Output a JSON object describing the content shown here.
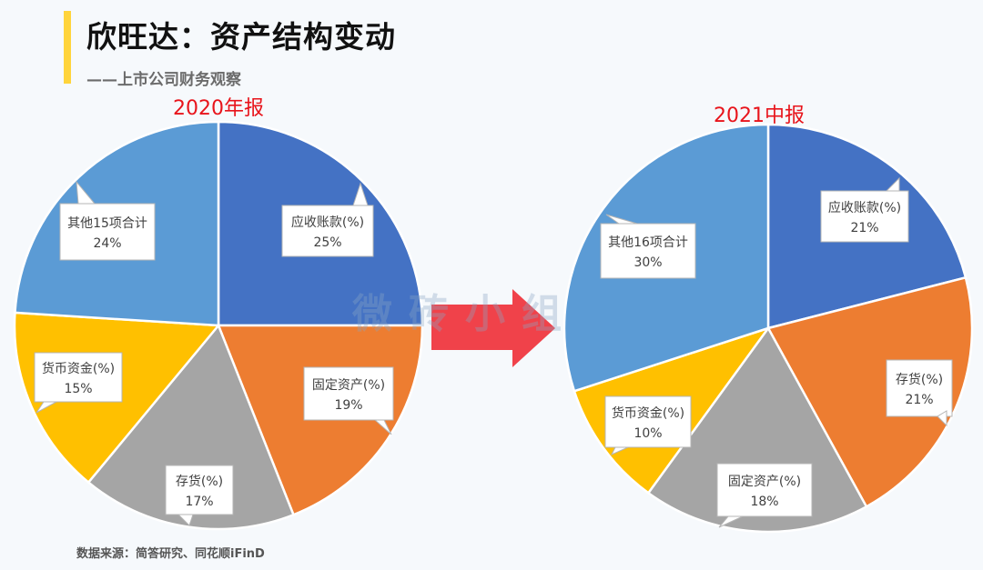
{
  "header": {
    "title": "欣旺达：资产结构变动",
    "subtitle": "——上市公司财务观察"
  },
  "footer": {
    "source": "数据来源：简答研究、同花顺iFinD"
  },
  "watermark": "微砖小组",
  "colors": {
    "accent_bar": "#ffd43b",
    "arrow": "#f0424a",
    "title_red": "#e8141b",
    "blue_dark": "#4472c4",
    "orange": "#ed7d31",
    "gray": "#a5a5a5",
    "yellow": "#ffc000",
    "blue_light": "#5b9bd5"
  },
  "chart_data": [
    {
      "type": "pie",
      "title": "2020年报",
      "slices": [
        {
          "label": "应收账款(%)",
          "value": 25,
          "value_label": "25%",
          "color": "#4472c4"
        },
        {
          "label": "固定资产(%)",
          "value": 19,
          "value_label": "19%",
          "color": "#ed7d31"
        },
        {
          "label": "存货(%)",
          "value": 17,
          "value_label": "17%",
          "color": "#a5a5a5"
        },
        {
          "label": "货币资金(%)",
          "value": 15,
          "value_label": "15%",
          "color": "#ffc000"
        },
        {
          "label": "其他15项合计",
          "value": 24,
          "value_label": "24%",
          "color": "#5b9bd5"
        }
      ]
    },
    {
      "type": "pie",
      "title": "2021中报",
      "slices": [
        {
          "label": "应收账款(%)",
          "value": 21,
          "value_label": "21%",
          "color": "#4472c4"
        },
        {
          "label": "存货(%)",
          "value": 21,
          "value_label": "21%",
          "color": "#ed7d31"
        },
        {
          "label": "固定资产(%)",
          "value": 18,
          "value_label": "18%",
          "color": "#a5a5a5"
        },
        {
          "label": "货币资金(%)",
          "value": 10,
          "value_label": "10%",
          "color": "#ffc000"
        },
        {
          "label": "其他16项合计",
          "value": 30,
          "value_label": "30%",
          "color": "#5b9bd5"
        }
      ]
    }
  ]
}
